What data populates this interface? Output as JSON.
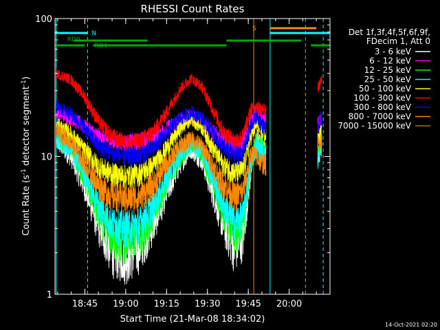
{
  "chart_data": {
    "type": "line",
    "title": "RHESSI Count Rates",
    "xlabel": "Start Time (21-Mar-08 18:34:02)",
    "ylabel_main": "Count Rate (s",
    "ylabel_sup1": "-1",
    "ylabel_mid": " detector segment",
    "ylabel_sup2": "-1",
    "ylabel_end": ")",
    "y_scale": "log",
    "ylim": [
      1,
      100
    ],
    "xlim": [
      "18:34:02",
      "20:15:00"
    ],
    "x_ticks": [
      {
        "t": "18:45",
        "label": "18:45"
      },
      {
        "t": "19:00",
        "label": "19:00"
      },
      {
        "t": "19:15",
        "label": "19:15"
      },
      {
        "t": "19:30",
        "label": "19:30"
      },
      {
        "t": "19:45",
        "label": "19:45"
      },
      {
        "t": "20:00",
        "label": "20:00"
      }
    ],
    "y_ticks": [
      {
        "v": 1,
        "label": "1"
      },
      {
        "v": 10,
        "label": "10"
      },
      {
        "v": 100,
        "label": "100"
      }
    ],
    "legend_header": [
      "Det 1f,3f,4f,5f,6f,9f,",
      "FDecim 1, Att 0"
    ],
    "series": [
      {
        "name": "3 - 6 keV",
        "color": "#ffffff",
        "points": [
          [
            "18:34:30",
            13
          ],
          [
            "18:40",
            10
          ],
          [
            "18:45",
            6
          ],
          [
            "18:50",
            3.2
          ],
          [
            "18:55",
            2.1
          ],
          [
            "19:00",
            1.9
          ],
          [
            "19:05",
            2.2
          ],
          [
            "19:10",
            3.2
          ],
          [
            "19:15",
            5.5
          ],
          [
            "19:20",
            9
          ],
          [
            "19:24",
            11.5
          ],
          [
            "19:28",
            9.5
          ],
          [
            "19:32",
            5.5
          ],
          [
            "19:36",
            3.2
          ],
          [
            "19:40",
            2.2
          ],
          [
            "19:43",
            2.6
          ],
          [
            "19:46",
            8
          ],
          [
            "19:48",
            14
          ],
          [
            "19:50",
            12
          ],
          [
            "19:51:30",
            11
          ]
        ],
        "points2": [
          [
            "20:10:30",
            10
          ],
          [
            "20:12",
            13
          ]
        ]
      },
      {
        "name": "6 - 12 keV",
        "color": "#ff00ff",
        "points": [
          [
            "18:34:30",
            21
          ],
          [
            "18:40",
            19
          ],
          [
            "18:45",
            16.5
          ],
          [
            "18:50",
            14
          ],
          [
            "18:55",
            13
          ],
          [
            "19:00",
            12.5
          ],
          [
            "19:05",
            13
          ],
          [
            "19:10",
            14
          ],
          [
            "19:15",
            16
          ],
          [
            "19:20",
            18.5
          ],
          [
            "19:24",
            19.5
          ],
          [
            "19:28",
            18
          ],
          [
            "19:32",
            15
          ],
          [
            "19:36",
            13
          ],
          [
            "19:40",
            12
          ],
          [
            "19:43",
            12.5
          ],
          [
            "19:46",
            18
          ],
          [
            "19:48",
            22
          ],
          [
            "19:50",
            19
          ],
          [
            "19:51:30",
            18
          ]
        ],
        "points2": [
          [
            "20:10:30",
            17
          ],
          [
            "20:12",
            19
          ]
        ]
      },
      {
        "name": "12 - 25 keV",
        "color": "#00ff00",
        "points": [
          [
            "18:34:30",
            14
          ],
          [
            "18:40",
            11
          ],
          [
            "18:45",
            7
          ],
          [
            "18:50",
            3.9
          ],
          [
            "18:55",
            2.7
          ],
          [
            "19:00",
            2.5
          ],
          [
            "19:05",
            2.7
          ],
          [
            "19:10",
            3.8
          ],
          [
            "19:15",
            6.5
          ],
          [
            "19:20",
            10
          ],
          [
            "19:24",
            12.5
          ],
          [
            "19:28",
            10.5
          ],
          [
            "19:32",
            6.5
          ],
          [
            "19:36",
            3.9
          ],
          [
            "19:40",
            2.8
          ],
          [
            "19:43",
            3.2
          ],
          [
            "19:46",
            9
          ],
          [
            "19:48",
            13
          ],
          [
            "19:50",
            12
          ],
          [
            "19:51:30",
            11
          ]
        ],
        "points2": [
          [
            "20:10:30",
            10.5
          ],
          [
            "20:12",
            13
          ]
        ]
      },
      {
        "name": "25 - 50 keV",
        "color": "#00ffff",
        "points": [
          [
            "18:34:30",
            13.5
          ],
          [
            "18:40",
            11
          ],
          [
            "18:45",
            7.5
          ],
          [
            "18:50",
            4.5
          ],
          [
            "18:55",
            3.3
          ],
          [
            "19:00",
            3.1
          ],
          [
            "19:05",
            3.3
          ],
          [
            "19:10",
            4.4
          ],
          [
            "19:15",
            7
          ],
          [
            "19:20",
            10.5
          ],
          [
            "19:24",
            12.5
          ],
          [
            "19:28",
            11
          ],
          [
            "19:32",
            7
          ],
          [
            "19:36",
            4.5
          ],
          [
            "19:40",
            3.4
          ],
          [
            "19:43",
            3.7
          ],
          [
            "19:46",
            9
          ],
          [
            "19:48",
            12
          ],
          [
            "19:50",
            11
          ],
          [
            "19:51:30",
            10
          ]
        ],
        "points2": [
          [
            "20:10:30",
            9.5
          ],
          [
            "20:12",
            12
          ]
        ]
      },
      {
        "name": "50 - 100 keV",
        "color": "#ffff00",
        "points": [
          [
            "18:34:30",
            17
          ],
          [
            "18:40",
            14.5
          ],
          [
            "18:45",
            11
          ],
          [
            "18:50",
            8.5
          ],
          [
            "18:55",
            7.5
          ],
          [
            "19:00",
            7.2
          ],
          [
            "19:05",
            7.5
          ],
          [
            "19:10",
            8.6
          ],
          [
            "19:15",
            11.5
          ],
          [
            "19:20",
            16
          ],
          [
            "19:24",
            19
          ],
          [
            "19:28",
            16.5
          ],
          [
            "19:32",
            11.5
          ],
          [
            "19:36",
            8.6
          ],
          [
            "19:40",
            7.6
          ],
          [
            "19:43",
            8
          ],
          [
            "19:46",
            14
          ],
          [
            "19:48",
            17
          ],
          [
            "19:50",
            15
          ],
          [
            "19:51:30",
            14
          ]
        ],
        "points2": [
          [
            "20:10:30",
            13
          ],
          [
            "20:12",
            15.5
          ]
        ]
      },
      {
        "name": "100 - 300 keV",
        "color": "#ff0000",
        "points": [
          [
            "18:34:30",
            40
          ],
          [
            "18:40",
            36
          ],
          [
            "18:45",
            27
          ],
          [
            "18:50",
            18
          ],
          [
            "18:55",
            14
          ],
          [
            "19:00",
            12.5
          ],
          [
            "19:05",
            13
          ],
          [
            "19:10",
            15
          ],
          [
            "19:15",
            21
          ],
          [
            "19:20",
            31
          ],
          [
            "19:24",
            37
          ],
          [
            "19:28",
            32
          ],
          [
            "19:32",
            22
          ],
          [
            "19:36",
            15
          ],
          [
            "19:40",
            13
          ],
          [
            "19:43",
            14
          ],
          [
            "19:46",
            22
          ],
          [
            "19:48",
            23
          ],
          [
            "19:50",
            22
          ],
          [
            "19:51:30",
            22
          ]
        ],
        "points2": [
          [
            "20:10:30",
            31
          ],
          [
            "20:12",
            36
          ]
        ]
      },
      {
        "name": "300 - 800 keV",
        "color": "#0000ff",
        "points": [
          [
            "18:34:30",
            23
          ],
          [
            "18:40",
            20.5
          ],
          [
            "18:45",
            16
          ],
          [
            "18:50",
            12
          ],
          [
            "18:55",
            10.5
          ],
          [
            "19:00",
            10
          ],
          [
            "19:05",
            10.2
          ],
          [
            "19:10",
            11.5
          ],
          [
            "19:15",
            15
          ],
          [
            "19:20",
            19
          ],
          [
            "19:24",
            21
          ],
          [
            "19:28",
            19
          ],
          [
            "19:32",
            15
          ],
          [
            "19:36",
            11.5
          ],
          [
            "19:40",
            10.2
          ],
          [
            "19:43",
            10.8
          ],
          [
            "19:46",
            17
          ],
          [
            "19:48",
            19.5
          ],
          [
            "19:50",
            17
          ],
          [
            "19:51:30",
            16
          ]
        ],
        "points2": [
          [
            "20:10:30",
            16
          ],
          [
            "20:12",
            19.5
          ]
        ]
      },
      {
        "name": "800 - 7000 keV",
        "color": "#ff8800",
        "points": [
          [
            "18:34:30",
            15.5
          ],
          [
            "18:40",
            12.5
          ],
          [
            "18:45",
            9
          ],
          [
            "18:50",
            6.2
          ],
          [
            "18:55",
            5.2
          ],
          [
            "19:00",
            5
          ],
          [
            "19:05",
            5.1
          ],
          [
            "19:10",
            6.2
          ],
          [
            "19:15",
            9
          ],
          [
            "19:20",
            12
          ],
          [
            "19:24",
            13.5
          ],
          [
            "19:28",
            12
          ],
          [
            "19:32",
            8.5
          ],
          [
            "19:36",
            6.2
          ],
          [
            "19:40",
            5.2
          ],
          [
            "19:43",
            5.6
          ],
          [
            "19:46",
            10.5
          ],
          [
            "19:48",
            10
          ],
          [
            "19:50",
            9
          ],
          [
            "19:51:30",
            8.8
          ]
        ],
        "points2": [
          [
            "20:10:30",
            12
          ],
          [
            "20:12",
            13.5
          ]
        ]
      },
      {
        "name": "7000 - 15000 keV",
        "color": "#aa7700",
        "points": [],
        "points2": []
      }
    ],
    "segments": [
      {
        "label": "N",
        "label_color": "#00ffff",
        "color": "#00ffff",
        "y": 0.8,
        "ranges": [
          [
            "18:34:02",
            "18:46:00"
          ],
          [
            "19:53:00",
            "20:15:00"
          ]
        ],
        "label_at": "18:47:30",
        "label_y": 0.8
      },
      {
        "label": "RD0",
        "label_color": "#00aa00",
        "color": "#00aa00",
        "y": 0.6,
        "ranges": [
          [
            "18:41:00",
            "19:08:00"
          ],
          [
            "19:37:00",
            "20:04:30"
          ]
        ],
        "label_at": "18:38:30",
        "label_y": 0.67
      },
      {
        "label": "RD4",
        "label_color": "#00aa00",
        "color": "#00aa00",
        "y": 0.52,
        "ranges": [
          [
            "18:34:02",
            "18:45:00"
          ],
          [
            "18:48:00",
            "19:37:00"
          ],
          [
            "20:08:00",
            "20:15:00"
          ]
        ],
        "label_at": "18:48:30",
        "label_y": 0.43
      },
      {
        "label": "S",
        "label_color": "#ff8800",
        "color": "#ff8800",
        "y": 0.88,
        "ranges": [
          [
            "19:53:00",
            "20:10:00"
          ]
        ],
        "label_at": "19:46:30",
        "label_y": 0.92
      }
    ],
    "vlines": [
      {
        "t": "18:34:30",
        "color": "#00ffff",
        "dash": false
      },
      {
        "t": "18:46:00",
        "color": "#00ffff",
        "dash": true
      },
      {
        "t": "19:47:00",
        "color": "#ff8800",
        "dash": false
      },
      {
        "t": "19:53:00",
        "color": "#00ffff",
        "dash": false
      },
      {
        "t": "20:06:00",
        "color": "#ff8800",
        "dash": true
      },
      {
        "t": "20:12:30",
        "color": "#00ffff",
        "dash": true
      }
    ],
    "footer_stamp": "14-Oct-2021 02:20"
  }
}
